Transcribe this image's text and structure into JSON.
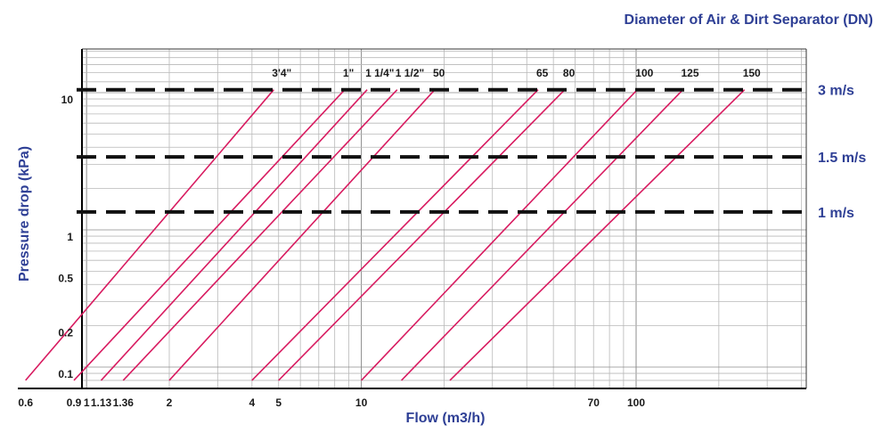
{
  "chart_data": {
    "type": "line",
    "title": "Diameter of Air & Dirt Separator (DN)",
    "xlabel": "Flow (m3/h)",
    "ylabel": "Pressure drop (kPa)",
    "xscale": "log",
    "yscale": "log",
    "grid": true,
    "colors": {
      "series": "#d81b60",
      "text": "#2e3f95",
      "grid": "#b8b8b8",
      "axis": "#000000"
    },
    "x_tick_labels": [
      {
        "label": "0.6",
        "value": 0.6
      },
      {
        "label": "0.9",
        "value": 0.9
      },
      {
        "label": "1",
        "value": 1
      },
      {
        "label": "1.13",
        "value": 1.13
      },
      {
        "label": "1.36",
        "value": 1.36
      },
      {
        "label": "2",
        "value": 2
      },
      {
        "label": "4",
        "value": 4
      },
      {
        "label": "5",
        "value": 5
      },
      {
        "label": "10",
        "value": 10
      },
      {
        "label": "70",
        "value": 70
      },
      {
        "label": "100",
        "value": 100
      }
    ],
    "y_tick_labels": [
      {
        "label": "10",
        "value": 10
      },
      {
        "label": "1",
        "value": 1
      },
      {
        "label": "0.5",
        "value": 0.5
      },
      {
        "label": "0.2",
        "value": 0.2
      },
      {
        "label": "0.1",
        "value": 0.1
      }
    ],
    "velocity_lines": [
      {
        "label": "3 m/s",
        "kpa": 10.5
      },
      {
        "label": "1.5 m/s",
        "kpa": 3.4
      },
      {
        "label": "1 m/s",
        "kpa": 1.35
      }
    ],
    "series": [
      {
        "name": "3'4\"",
        "x": [
          0.6,
          4.8
        ],
        "y": [
          0.08,
          10.5
        ]
      },
      {
        "name": "1\"",
        "x": [
          0.9,
          8.7
        ],
        "y": [
          0.08,
          10.5
        ]
      },
      {
        "name": "1 1/4\"",
        "x": [
          1.13,
          10.5
        ],
        "y": [
          0.08,
          10.5
        ]
      },
      {
        "name": "1 1/2\"",
        "x": [
          1.36,
          13.5
        ],
        "y": [
          0.08,
          10.5
        ]
      },
      {
        "name": "50",
        "x": [
          2,
          18.5
        ],
        "y": [
          0.08,
          10.5
        ]
      },
      {
        "name": "65",
        "x": [
          4,
          44
        ],
        "y": [
          0.08,
          10.5
        ]
      },
      {
        "name": "80",
        "x": [
          5,
          55
        ],
        "y": [
          0.08,
          10.5
        ]
      },
      {
        "name": "100",
        "x": [
          10,
          101
        ],
        "y": [
          0.08,
          10.5
        ]
      },
      {
        "name": "125",
        "x": [
          14,
          148
        ],
        "y": [
          0.08,
          10.5
        ]
      },
      {
        "name": "150",
        "x": [
          21,
          248
        ],
        "y": [
          0.08,
          10.5
        ]
      }
    ]
  }
}
